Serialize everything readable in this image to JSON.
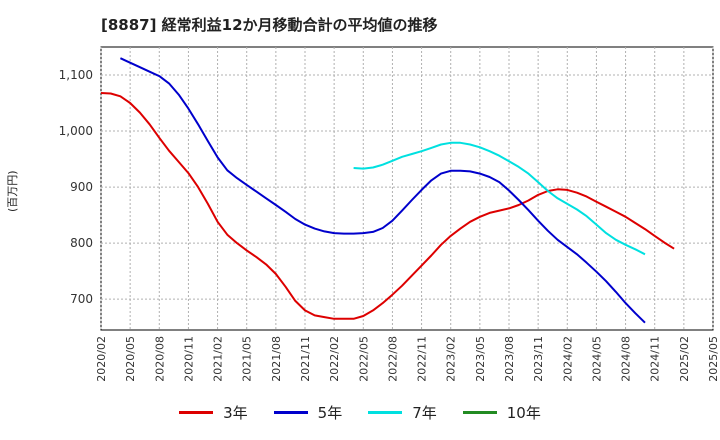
{
  "chart_data": {
    "type": "line",
    "title": "[8887]  経常利益12か月移動合計の平均値の推移",
    "ylabel": "(百万円)",
    "xlabel": "",
    "ylim": [
      645,
      1150
    ],
    "yticks": [
      "700",
      "800",
      "900",
      "1,000",
      "1,100"
    ],
    "ytick_values": [
      700,
      800,
      900,
      1000,
      1100
    ],
    "xticks": [
      "2020/02",
      "2020/05",
      "2020/08",
      "2020/11",
      "2021/02",
      "2021/05",
      "2021/08",
      "2021/11",
      "2022/02",
      "2022/05",
      "2022/08",
      "2022/11",
      "2023/02",
      "2023/05",
      "2023/08",
      "2023/11",
      "2024/02",
      "2024/05",
      "2024/08",
      "2024/11",
      "2025/02",
      "2025/05"
    ],
    "grid": true,
    "legend_position": "bottom",
    "series": [
      {
        "name": "3年",
        "color": "#dd0000",
        "points": [
          [
            "2020/02",
            1068
          ],
          [
            "2020/03",
            1067
          ],
          [
            "2020/04",
            1062
          ],
          [
            "2020/05",
            1050
          ],
          [
            "2020/06",
            1033
          ],
          [
            "2020/07",
            1012
          ],
          [
            "2020/08",
            988
          ],
          [
            "2020/09",
            965
          ],
          [
            "2020/10",
            945
          ],
          [
            "2020/11",
            925
          ],
          [
            "2020/12",
            900
          ],
          [
            "2021/01",
            870
          ],
          [
            "2021/02",
            838
          ],
          [
            "2021/03",
            815
          ],
          [
            "2021/04",
            800
          ],
          [
            "2021/05",
            787
          ],
          [
            "2021/06",
            775
          ],
          [
            "2021/07",
            762
          ],
          [
            "2021/08",
            745
          ],
          [
            "2021/09",
            722
          ],
          [
            "2021/10",
            697
          ],
          [
            "2021/11",
            680
          ],
          [
            "2021/12",
            671
          ],
          [
            "2022/01",
            668
          ],
          [
            "2022/02",
            665
          ],
          [
            "2022/03",
            665
          ],
          [
            "2022/04",
            665
          ],
          [
            "2022/05",
            670
          ],
          [
            "2022/06",
            680
          ],
          [
            "2022/07",
            693
          ],
          [
            "2022/08",
            708
          ],
          [
            "2022/09",
            724
          ],
          [
            "2022/10",
            742
          ],
          [
            "2022/11",
            760
          ],
          [
            "2022/12",
            778
          ],
          [
            "2023/01",
            797
          ],
          [
            "2023/02",
            813
          ],
          [
            "2023/03",
            826
          ],
          [
            "2023/04",
            838
          ],
          [
            "2023/05",
            847
          ],
          [
            "2023/06",
            854
          ],
          [
            "2023/07",
            858
          ],
          [
            "2023/08",
            862
          ],
          [
            "2023/09",
            868
          ],
          [
            "2023/10",
            876
          ],
          [
            "2023/11",
            886
          ],
          [
            "2023/12",
            893
          ],
          [
            "2024/01",
            896
          ],
          [
            "2024/02",
            895
          ],
          [
            "2024/03",
            890
          ],
          [
            "2024/04",
            883
          ],
          [
            "2024/05",
            874
          ],
          [
            "2024/06",
            865
          ],
          [
            "2024/07",
            856
          ],
          [
            "2024/08",
            847
          ],
          [
            "2024/09",
            836
          ],
          [
            "2024/10",
            825
          ],
          [
            "2024/11",
            813
          ],
          [
            "2024/12",
            801
          ],
          [
            "2025/01",
            790
          ]
        ]
      },
      {
        "name": "5年",
        "color": "#0000cc",
        "points": [
          [
            "2020/04",
            1130
          ],
          [
            "2020/05",
            1122
          ],
          [
            "2020/06",
            1114
          ],
          [
            "2020/07",
            1106
          ],
          [
            "2020/08",
            1098
          ],
          [
            "2020/09",
            1085
          ],
          [
            "2020/10",
            1065
          ],
          [
            "2020/11",
            1040
          ],
          [
            "2020/12",
            1012
          ],
          [
            "2021/01",
            982
          ],
          [
            "2021/02",
            953
          ],
          [
            "2021/03",
            930
          ],
          [
            "2021/04",
            916
          ],
          [
            "2021/05",
            904
          ],
          [
            "2021/06",
            892
          ],
          [
            "2021/07",
            880
          ],
          [
            "2021/08",
            868
          ],
          [
            "2021/09",
            856
          ],
          [
            "2021/10",
            843
          ],
          [
            "2021/11",
            833
          ],
          [
            "2021/12",
            826
          ],
          [
            "2022/01",
            821
          ],
          [
            "2022/02",
            818
          ],
          [
            "2022/03",
            817
          ],
          [
            "2022/04",
            817
          ],
          [
            "2022/05",
            818
          ],
          [
            "2022/06",
            820
          ],
          [
            "2022/07",
            827
          ],
          [
            "2022/08",
            840
          ],
          [
            "2022/09",
            858
          ],
          [
            "2022/10",
            877
          ],
          [
            "2022/11",
            895
          ],
          [
            "2022/12",
            912
          ],
          [
            "2023/01",
            924
          ],
          [
            "2023/02",
            929
          ],
          [
            "2023/03",
            929
          ],
          [
            "2023/04",
            928
          ],
          [
            "2023/05",
            924
          ],
          [
            "2023/06",
            918
          ],
          [
            "2023/07",
            909
          ],
          [
            "2023/08",
            894
          ],
          [
            "2023/09",
            877
          ],
          [
            "2023/10",
            859
          ],
          [
            "2023/11",
            840
          ],
          [
            "2023/12",
            822
          ],
          [
            "2024/01",
            806
          ],
          [
            "2024/02",
            793
          ],
          [
            "2024/03",
            780
          ],
          [
            "2024/04",
            765
          ],
          [
            "2024/05",
            749
          ],
          [
            "2024/06",
            732
          ],
          [
            "2024/07",
            713
          ],
          [
            "2024/08",
            693
          ],
          [
            "2024/09",
            675
          ],
          [
            "2024/10",
            658
          ]
        ]
      },
      {
        "name": "7年",
        "color": "#00e0e0",
        "points": [
          [
            "2022/04",
            934
          ],
          [
            "2022/05",
            933
          ],
          [
            "2022/06",
            935
          ],
          [
            "2022/07",
            940
          ],
          [
            "2022/08",
            947
          ],
          [
            "2022/09",
            954
          ],
          [
            "2022/10",
            959
          ],
          [
            "2022/11",
            964
          ],
          [
            "2022/12",
            970
          ],
          [
            "2023/01",
            976
          ],
          [
            "2023/02",
            979
          ],
          [
            "2023/03",
            979
          ],
          [
            "2023/04",
            976
          ],
          [
            "2023/05",
            971
          ],
          [
            "2023/06",
            964
          ],
          [
            "2023/07",
            956
          ],
          [
            "2023/08",
            946
          ],
          [
            "2023/09",
            936
          ],
          [
            "2023/10",
            924
          ],
          [
            "2023/11",
            909
          ],
          [
            "2023/12",
            893
          ],
          [
            "2024/01",
            880
          ],
          [
            "2024/02",
            870
          ],
          [
            "2024/03",
            860
          ],
          [
            "2024/04",
            848
          ],
          [
            "2024/05",
            833
          ],
          [
            "2024/06",
            818
          ],
          [
            "2024/07",
            806
          ],
          [
            "2024/08",
            797
          ],
          [
            "2024/09",
            789
          ],
          [
            "2024/10",
            780
          ]
        ]
      },
      {
        "name": "10年",
        "color": "#228b22",
        "points": []
      }
    ]
  }
}
